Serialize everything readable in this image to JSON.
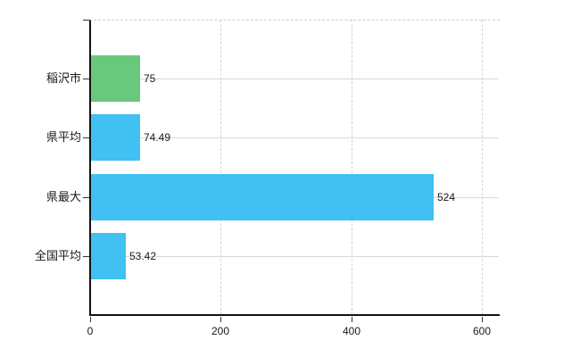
{
  "chart_data": {
    "type": "bar",
    "orientation": "horizontal",
    "title": "",
    "categories": [
      "稲沢市",
      "県平均",
      "県最大",
      "全国平均"
    ],
    "values": [
      75,
      74.49,
      524,
      53.42
    ],
    "value_labels": [
      "75",
      "74.49",
      "524",
      "53.42"
    ],
    "bar_colors": [
      "#68c87c",
      "#41c0f2",
      "#41c0f2",
      "#41c0f2"
    ],
    "x_ticks": [
      0,
      200,
      400,
      600
    ],
    "x_tick_labels": [
      "0",
      "200",
      "400",
      "600"
    ],
    "xlim": [
      0,
      627
    ],
    "grid": true,
    "legend_position": "none",
    "colors": {
      "background": "#ffffff",
      "axis": "#111111",
      "tick": "#333333",
      "grid_horizontal": "#d5dcd3",
      "grid_vertical": "#d3d3d3",
      "plot_top_border": "#cfcfcf",
      "text": "#1a1a1a",
      "highlight_bar": "#68c87c",
      "default_bar": "#41c0f2"
    }
  }
}
